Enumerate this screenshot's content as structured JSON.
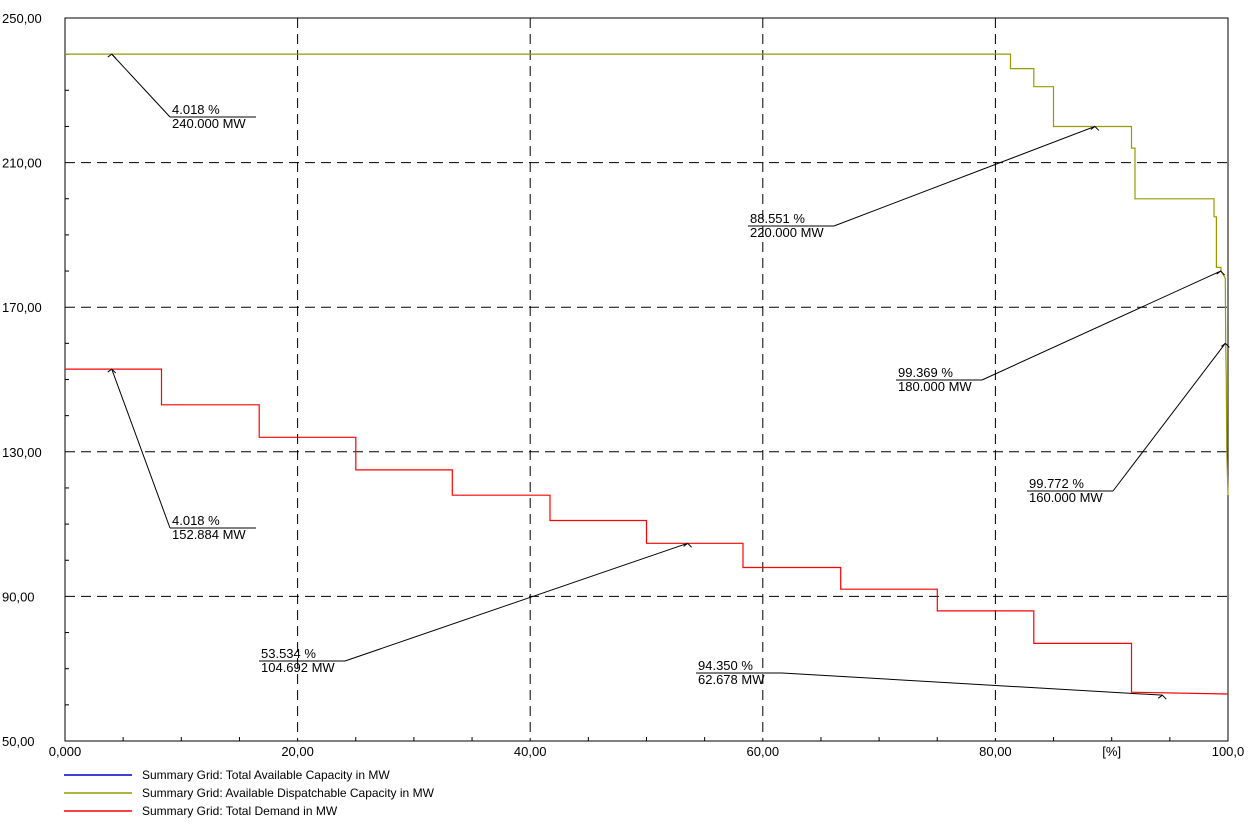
{
  "chart_data": {
    "type": "line",
    "title": "",
    "xlabel": "[%]",
    "ylabel": "",
    "xlim": [
      0,
      100
    ],
    "ylim": [
      50,
      250
    ],
    "x_ticks": [
      "0,000",
      "20,00",
      "40,00",
      "60,00",
      "80,00",
      "100,0"
    ],
    "y_ticks": [
      "50,00",
      "90,00",
      "130,00",
      "170,00",
      "210,00",
      "250,00"
    ],
    "grid": true,
    "legend_position": "bottom-left",
    "series": [
      {
        "name": "Summary Grid: Total Available Capacity in MW",
        "color": "#0000cc",
        "points": []
      },
      {
        "name": "Summary Grid: Available Dispatchable Capacity in MW",
        "color": "#999900",
        "points": [
          [
            0,
            240
          ],
          [
            81.3,
            240
          ],
          [
            81.3,
            236
          ],
          [
            83.3,
            236
          ],
          [
            83.3,
            231
          ],
          [
            85.0,
            231
          ],
          [
            85.0,
            220
          ],
          [
            91.7,
            220
          ],
          [
            91.7,
            214
          ],
          [
            92.0,
            214
          ],
          [
            92.0,
            200
          ],
          [
            98.8,
            200
          ],
          [
            98.8,
            195
          ],
          [
            99.0,
            195
          ],
          [
            99.0,
            181
          ],
          [
            99.4,
            181
          ],
          [
            99.4,
            180
          ],
          [
            99.77,
            178
          ],
          [
            99.8,
            160
          ],
          [
            99.85,
            150
          ],
          [
            99.9,
            130
          ],
          [
            100,
            118
          ]
        ]
      },
      {
        "name": "Summary Grid: Total Demand in MW",
        "color": "#ff0000",
        "points": [
          [
            0,
            152.884
          ],
          [
            8.3,
            152.884
          ],
          [
            8.3,
            143
          ],
          [
            16.7,
            143
          ],
          [
            16.7,
            134
          ],
          [
            25.0,
            134
          ],
          [
            25.0,
            125
          ],
          [
            33.3,
            125
          ],
          [
            33.3,
            118
          ],
          [
            41.7,
            118
          ],
          [
            41.7,
            111
          ],
          [
            50.0,
            111
          ],
          [
            50.0,
            104.692
          ],
          [
            58.3,
            104.692
          ],
          [
            58.3,
            98
          ],
          [
            66.7,
            98
          ],
          [
            66.7,
            92
          ],
          [
            75.0,
            92
          ],
          [
            75.0,
            86
          ],
          [
            83.3,
            86
          ],
          [
            83.3,
            77
          ],
          [
            91.7,
            77
          ],
          [
            91.7,
            63.5
          ],
          [
            100,
            63
          ]
        ]
      }
    ],
    "annotations": [
      {
        "pct": "4.018 %",
        "mw": "240.000 MW",
        "x": 4.018,
        "y": 240.0
      },
      {
        "pct": "88.551 %",
        "mw": "220.000 MW",
        "x": 88.551,
        "y": 220.0
      },
      {
        "pct": "99.369 %",
        "mw": "180.000 MW",
        "x": 99.369,
        "y": 180.0
      },
      {
        "pct": "99.772 %",
        "mw": "160.000 MW",
        "x": 99.772,
        "y": 160.0
      },
      {
        "pct": "4.018 %",
        "mw": "152.884 MW",
        "x": 4.018,
        "y": 152.884
      },
      {
        "pct": "53.534 %",
        "mw": "104.692 MW",
        "x": 53.534,
        "y": 104.692
      },
      {
        "pct": "94.350 %",
        "mw": "62.678 MW",
        "x": 94.35,
        "y": 62.678
      }
    ]
  }
}
